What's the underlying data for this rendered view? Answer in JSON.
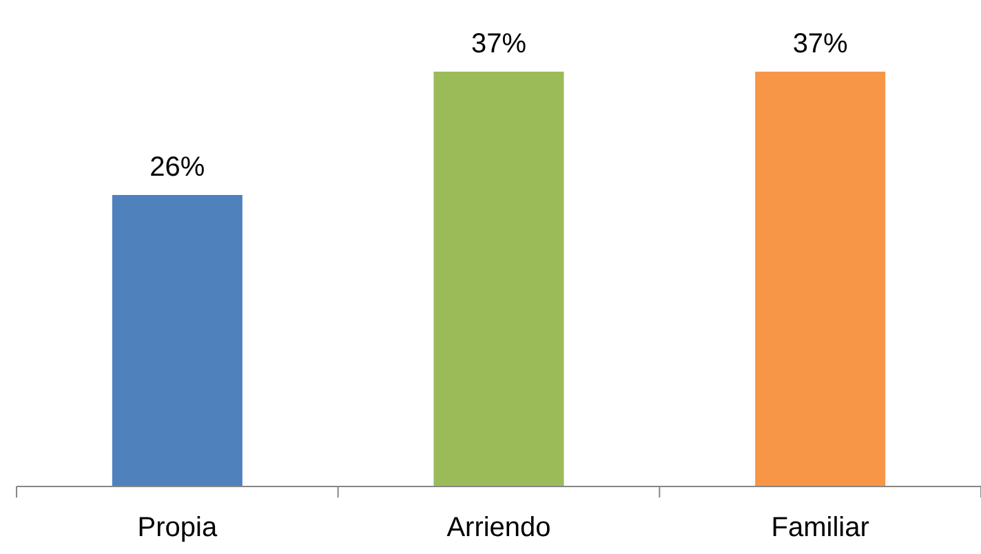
{
  "chart_data": {
    "type": "bar",
    "categories": [
      "Propia",
      "Arriendo",
      "Familiar"
    ],
    "values": [
      26,
      37,
      37
    ],
    "colors": [
      "#4f81bd",
      "#9bbb59",
      "#f79646"
    ],
    "value_labels": [
      "26%",
      "37%",
      "37%"
    ]
  }
}
